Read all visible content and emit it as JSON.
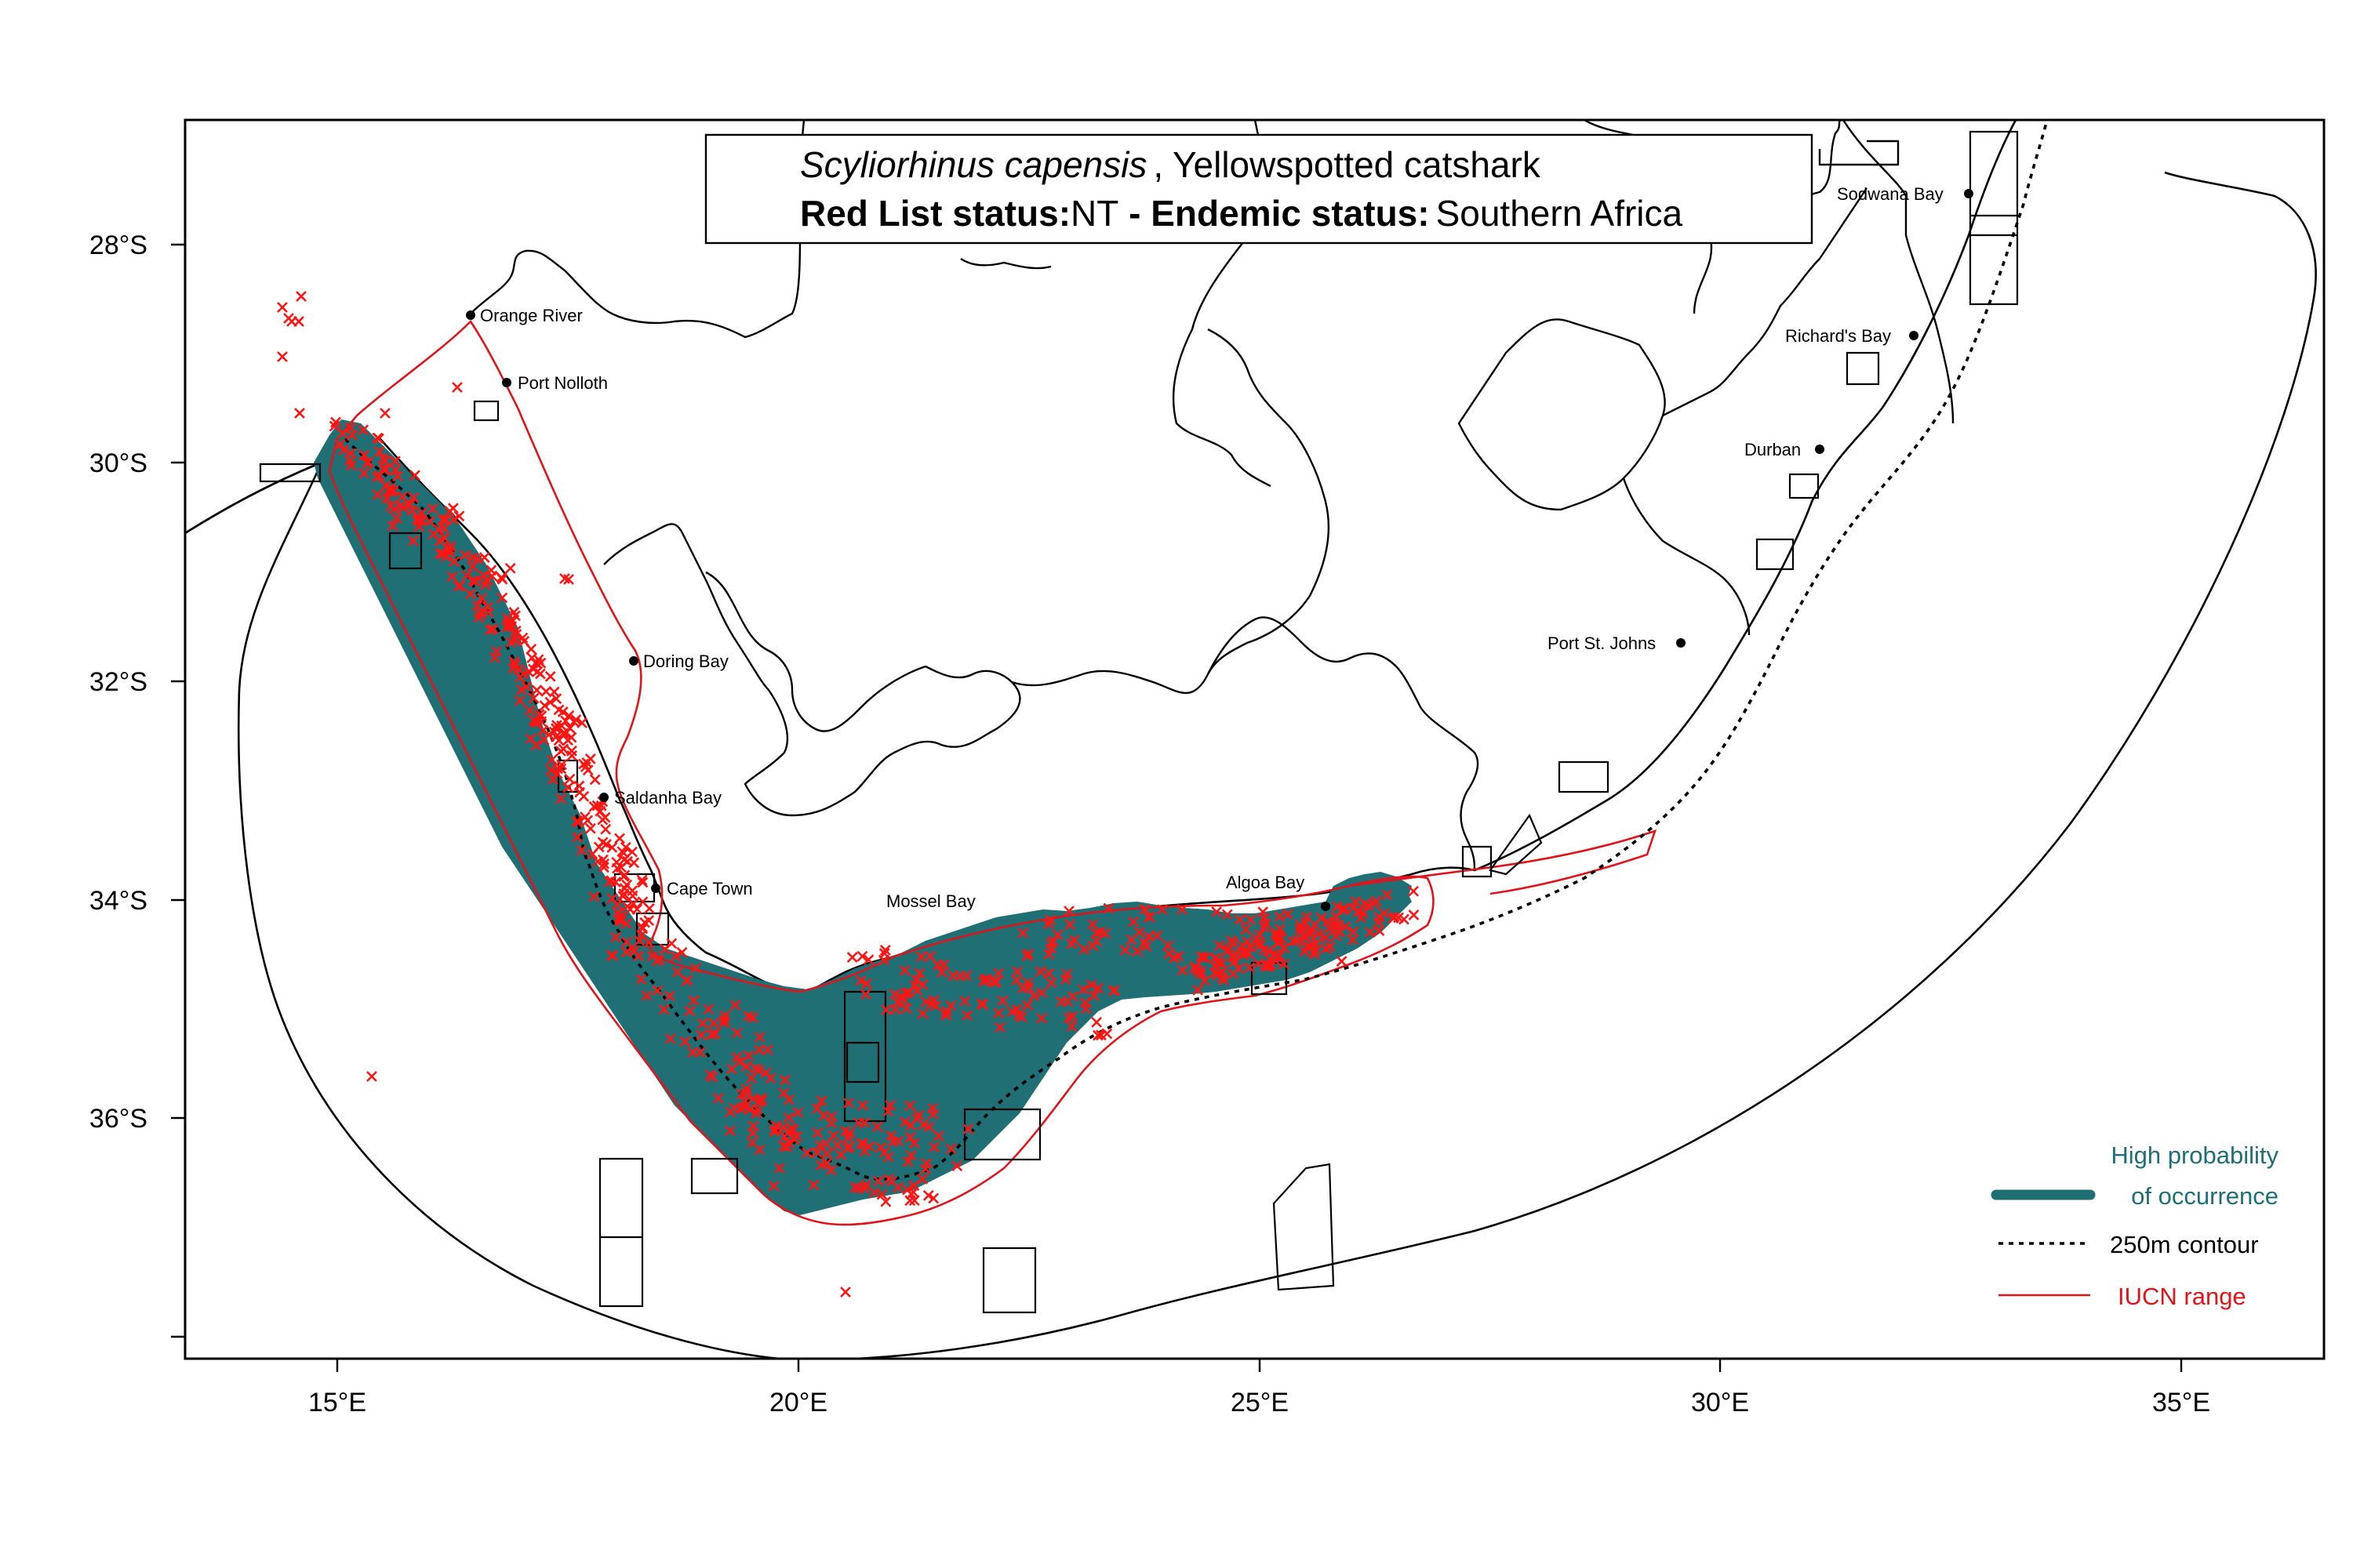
{
  "title": {
    "species_italic": "Scyliorhinus capensis",
    "common_name": ", Yellowspotted catshark",
    "redlist_label": "Red List status:",
    "redlist_value": "NT",
    "endemic_label": " - Endemic status:",
    "endemic_value": "Southern Africa"
  },
  "axes": {
    "x_ticks": [
      "15°E",
      "20°E",
      "25°E",
      "30°E",
      "35°E"
    ],
    "y_ticks": [
      "28°S",
      "30°S",
      "32°S",
      "34°S",
      "36°S"
    ]
  },
  "places": [
    "Orange River",
    "Port Nolloth",
    "Doring Bay",
    "Saldanha Bay",
    "Cape Town",
    "Mossel Bay",
    "Algoa Bay",
    "Port St. Johns",
    "Durban",
    "Richard's Bay",
    "Sodwana Bay"
  ],
  "legend": {
    "probability_line1": "High probability",
    "probability_line2": "of occurrence",
    "contour": "250m contour",
    "iucn": "IUCN range"
  },
  "colors": {
    "probability": "#1f6f74",
    "occurrence": "#ff1414",
    "iucn": "#e2141b",
    "legend_text_probability": "#1f6f74"
  },
  "icons": {
    "occurrence_marker": "red-cross-marker",
    "place_marker": "black-dot-marker"
  }
}
